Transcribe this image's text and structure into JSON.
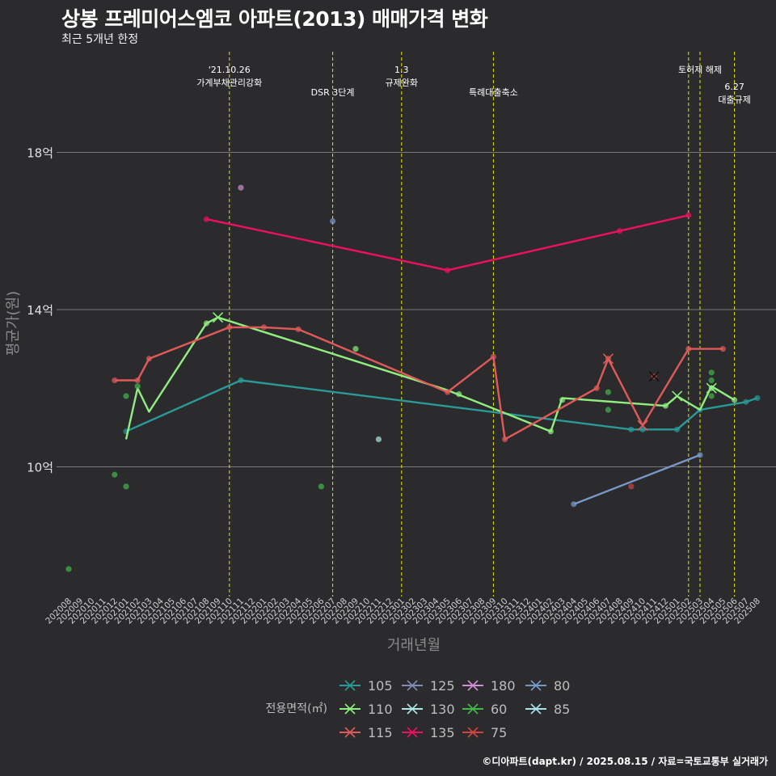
{
  "title": "상봉 프레미어스엠코 아파트(2013) 매매가격 변화",
  "subtitle": "최근 5개년 한정",
  "caption": "©디아파트(dapt.kr) / 2025.08.15 / 자료=국토교통부 실거래가",
  "colors": {
    "background": "#2b2b2d",
    "grid": "#7a7a7a",
    "event_line": "#e8e800"
  },
  "chart_data": {
    "type": "line",
    "xlabel": "거래년월",
    "ylabel": "평균가(원)",
    "x_ticks": [
      "202008",
      "202009",
      "202010",
      "202011",
      "202012",
      "202101",
      "202102",
      "202103",
      "202104",
      "202105",
      "202106",
      "202107",
      "202108",
      "202109",
      "202110",
      "202111",
      "202112",
      "202201",
      "202202",
      "202203",
      "202204",
      "202205",
      "202206",
      "202207",
      "202208",
      "202209",
      "202210",
      "202211",
      "202212",
      "202301",
      "202302",
      "202303",
      "202304",
      "202305",
      "202306",
      "202307",
      "202308",
      "202309",
      "202310",
      "202311",
      "202312",
      "202401",
      "202402",
      "202403",
      "202404",
      "202405",
      "202406",
      "202407",
      "202408",
      "202409",
      "202410",
      "202411",
      "202412",
      "202501",
      "202502",
      "202503",
      "202504",
      "202505",
      "202506",
      "202507",
      "202508"
    ],
    "y_ticks": [
      {
        "value": 10,
        "label": "10억"
      },
      {
        "value": 14,
        "label": "14억"
      },
      {
        "value": 18,
        "label": "18억"
      }
    ],
    "y_unit": "억",
    "ylim": [
      6.7,
      20.6
    ],
    "grid": true,
    "legend_title": "전용면적(㎡)",
    "legend_position": "bottom",
    "events": [
      {
        "month": "202110",
        "label_lines": [
          "'21.10.26",
          "가계부채관리강화"
        ],
        "level": 0
      },
      {
        "month": "202207",
        "label_lines": [
          "DSR 3단계"
        ],
        "level": 1
      },
      {
        "month": "202301",
        "label_lines": [
          "1.3",
          "규제완화"
        ],
        "level": 0
      },
      {
        "month": "202309",
        "label_lines": [
          "특례대출축소"
        ],
        "level": 1
      },
      {
        "month": "202502",
        "label_lines": [],
        "level": 0
      },
      {
        "month": "202503",
        "label_lines": [
          "토허제 해제"
        ],
        "level": 0
      },
      {
        "month": "202506",
        "label_lines": [
          "6.27",
          "대출규제"
        ],
        "level": 2
      }
    ],
    "series": [
      {
        "name": "105",
        "color": "#2a9a98",
        "line": [
          [
            "202101",
            10.9
          ],
          [
            "202111",
            12.2
          ],
          [
            "202409",
            10.95
          ],
          [
            "202410",
            10.95
          ],
          [
            "202501",
            10.95
          ],
          [
            "202503",
            11.45
          ],
          [
            "202507",
            11.65
          ],
          [
            "202508",
            11.75
          ]
        ],
        "points": [
          [
            "202101",
            10.9
          ],
          [
            "202111",
            12.2
          ],
          [
            "202409",
            10.95
          ],
          [
            "202410",
            10.95
          ],
          [
            "202501",
            10.95
          ],
          [
            "202503",
            11.45
          ],
          [
            "202507",
            11.65
          ],
          [
            "202508",
            11.75
          ]
        ],
        "crosses": []
      },
      {
        "name": "110",
        "color": "#90ee80",
        "line": [
          [
            "202101",
            10.7
          ],
          [
            "202102",
            12.0
          ],
          [
            "202103",
            11.4
          ],
          [
            "202106",
            12.75
          ],
          [
            "202108",
            13.65
          ],
          [
            "202109",
            13.8
          ],
          [
            "202305",
            11.95
          ],
          [
            "202402",
            10.9
          ],
          [
            "202403",
            11.75
          ],
          [
            "202412",
            11.55
          ],
          [
            "202501",
            11.8
          ],
          [
            "202503",
            11.45
          ],
          [
            "202504",
            12.05
          ],
          [
            "202506",
            11.7
          ]
        ],
        "points": [
          [
            "202108",
            13.65
          ],
          [
            "202209",
            13.0
          ],
          [
            "202306",
            11.85
          ],
          [
            "202402",
            10.9
          ],
          [
            "202403",
            11.7
          ],
          [
            "202412",
            11.55
          ],
          [
            "202504",
            12.0
          ],
          [
            "202506",
            11.7
          ]
        ],
        "crosses": [
          [
            "202109",
            13.8
          ],
          [
            "202501",
            11.8
          ],
          [
            "202504",
            12.0
          ]
        ]
      },
      {
        "name": "115",
        "color": "#e05a5a",
        "line": [
          [
            "202012",
            12.2
          ],
          [
            "202102",
            12.2
          ],
          [
            "202103",
            12.75
          ],
          [
            "202110",
            13.55
          ],
          [
            "202201",
            13.55
          ],
          [
            "202204",
            13.5
          ],
          [
            "202305",
            11.9
          ],
          [
            "202309",
            12.8
          ],
          [
            "202310",
            10.7
          ],
          [
            "202406",
            12.0
          ],
          [
            "202407",
            12.75
          ],
          [
            "202410",
            11.05
          ],
          [
            "202502",
            13.0
          ],
          [
            "202505",
            13.0
          ]
        ],
        "points": [
          [
            "202012",
            12.2
          ],
          [
            "202102",
            12.2
          ],
          [
            "202103",
            12.75
          ],
          [
            "202110",
            13.55
          ],
          [
            "202201",
            13.55
          ],
          [
            "202204",
            13.5
          ],
          [
            "202305",
            11.9
          ],
          [
            "202309",
            12.8
          ],
          [
            "202310",
            10.7
          ],
          [
            "202406",
            12.0
          ],
          [
            "202407",
            12.75
          ],
          [
            "202502",
            13.0
          ],
          [
            "202505",
            13.0
          ]
        ],
        "crosses": [
          [
            "202407",
            12.75
          ],
          [
            "202410",
            11.05
          ]
        ]
      },
      {
        "name": "125",
        "color": "#7d8db4",
        "line": [],
        "points": [],
        "crosses": []
      },
      {
        "name": "130",
        "color": "#aee8e8",
        "line": [],
        "points": [
          [
            "202211",
            10.7
          ]
        ],
        "crosses": []
      },
      {
        "name": "135",
        "color": "#ee1060",
        "line": [
          [
            "202108",
            16.3
          ],
          [
            "202305",
            15.0
          ],
          [
            "202408",
            16.0
          ],
          [
            "202502",
            16.4
          ]
        ],
        "points": [
          [
            "202108",
            16.3
          ],
          [
            "202305",
            15.0
          ],
          [
            "202408",
            16.0
          ],
          [
            "202502",
            16.4
          ]
        ],
        "crosses": []
      },
      {
        "name": "180",
        "color": "#d090d0",
        "line": [],
        "points": [
          [
            "202111",
            17.1
          ]
        ],
        "crosses": []
      },
      {
        "name": "60",
        "color": "#43b84a",
        "line": [],
        "points": [
          [
            "202008",
            7.4
          ],
          [
            "202012",
            9.8
          ],
          [
            "202101",
            11.8
          ],
          [
            "202101",
            9.5
          ],
          [
            "202102",
            12.05
          ],
          [
            "202206",
            9.5
          ],
          [
            "202407",
            11.9
          ],
          [
            "202407",
            11.45
          ],
          [
            "202504",
            12.2
          ],
          [
            "202504",
            12.4
          ],
          [
            "202504",
            11.8
          ]
        ],
        "crosses": []
      },
      {
        "name": "75",
        "color": "#cc4444",
        "line": [],
        "points": [
          [
            "202409",
            9.5
          ],
          [
            "202411",
            12.3
          ]
        ],
        "crosses": [
          [
            "202411",
            12.3
          ]
        ]
      },
      {
        "name": "80",
        "color": "#7b97c8",
        "line": [
          [
            "202404",
            9.05
          ],
          [
            "202503",
            10.3
          ]
        ],
        "points": [
          [
            "202207",
            16.25
          ],
          [
            "202404",
            9.05
          ],
          [
            "202503",
            10.3
          ]
        ],
        "crosses": []
      },
      {
        "name": "85",
        "color": "#a8e2ec",
        "line": [],
        "points": [],
        "crosses": []
      }
    ]
  }
}
